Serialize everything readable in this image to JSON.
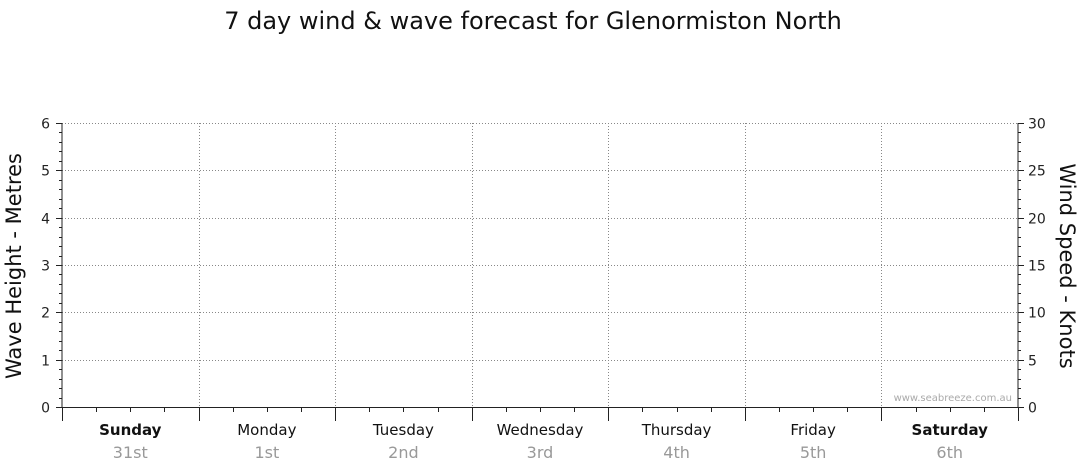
{
  "chart_data": {
    "type": "line",
    "title": "7 day wind & wave forecast for Glenormiston North",
    "left_axis": {
      "label": "Wave Height - Metres",
      "ylim": [
        0,
        6
      ],
      "ticks": [
        "0",
        "1",
        "2",
        "3",
        "4",
        "5",
        "6"
      ]
    },
    "right_axis": {
      "label": "Wind Speed - Knots",
      "ylim": [
        0,
        30
      ],
      "ticks": [
        "0",
        "5",
        "10",
        "15",
        "20",
        "25",
        "30"
      ]
    },
    "days": [
      {
        "name": "Sunday",
        "date": "31st",
        "bold": true
      },
      {
        "name": "Monday",
        "date": "1st",
        "bold": false
      },
      {
        "name": "Tuesday",
        "date": "2nd",
        "bold": false
      },
      {
        "name": "Wednesday",
        "date": "3rd",
        "bold": false
      },
      {
        "name": "Thursday",
        "date": "4th",
        "bold": false
      },
      {
        "name": "Friday",
        "date": "5th",
        "bold": false
      },
      {
        "name": "Saturday",
        "date": "6th",
        "bold": true
      }
    ],
    "series": [],
    "grid": true,
    "watermark": "www.seabreeze.com.au"
  },
  "colors": {
    "grid": "#888888",
    "axis": "#222222",
    "date_text": "#999999",
    "watermark": "#aaaaaa"
  }
}
